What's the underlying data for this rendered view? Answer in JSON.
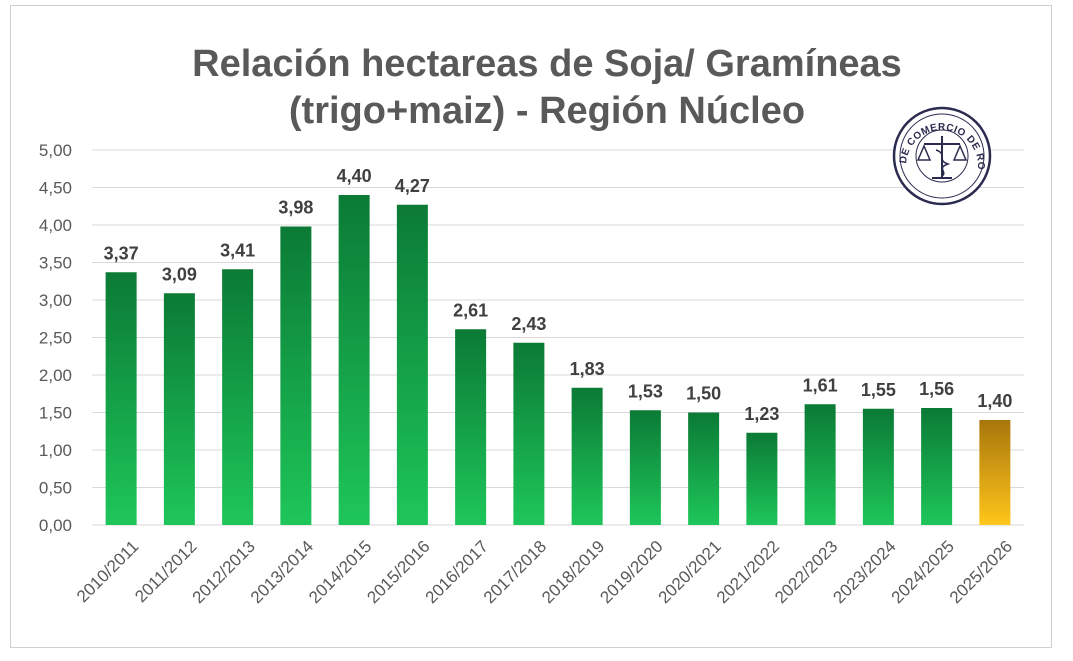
{
  "chart_data": {
    "type": "bar",
    "title": [
      "Relación hectareas de Soja/ Gramíneas",
      "(trigo+maiz) - Región Núcleo"
    ],
    "xlabel": "",
    "ylabel": "",
    "ylim": [
      0,
      5
    ],
    "yticks": [
      "0,00",
      "0,50",
      "1,00",
      "1,50",
      "2,00",
      "2,50",
      "3,00",
      "3,50",
      "4,00",
      "4,50",
      "5,00"
    ],
    "categories": [
      "2010/2011",
      "2011/2012",
      "2012/2013",
      "2013/2014",
      "2014/2015",
      "2015/2016",
      "2016/2017",
      "2017/2018",
      "2018/2019",
      "2019/2020",
      "2020/2021",
      "2021/2022",
      "2022/2023",
      "2023/2024",
      "2024/2025",
      "2025/2026"
    ],
    "values": [
      3.37,
      3.09,
      3.41,
      3.98,
      4.4,
      4.27,
      2.61,
      2.43,
      1.83,
      1.53,
      1.5,
      1.23,
      1.61,
      1.55,
      1.56,
      1.4
    ],
    "value_labels": [
      "3,37",
      "3,09",
      "3,41",
      "3,98",
      "4,40",
      "4,27",
      "2,61",
      "2,43",
      "1,83",
      "1,53",
      "1,50",
      "1,23",
      "1,61",
      "1,55",
      "1,56",
      "1,40"
    ],
    "highlight_index": 15,
    "grid": true,
    "legend": "none",
    "colors": {
      "bar_top": "#0b7a35",
      "bar_bottom": "#1ec65a",
      "highlight_top": "#a8760c",
      "highlight_bottom": "#ffc61a",
      "grid": "#d9d9d9",
      "text": "#595959"
    }
  },
  "logo": {
    "name": "bolsa-de-comercio-de-rosario-seal-icon",
    "text": "BOLSA DE COMERCIO DE ROSARIO"
  }
}
